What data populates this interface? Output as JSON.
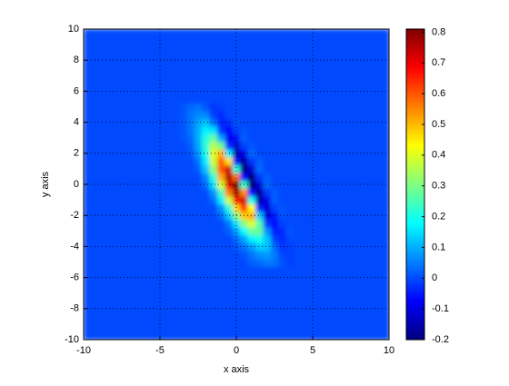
{
  "chart_data": {
    "type": "heatmap",
    "xlabel": "x axis",
    "ylabel": "y axis",
    "colormap": "jet",
    "grid": true,
    "xlim": [
      -10,
      10
    ],
    "ylim": [
      -10,
      10
    ],
    "xticks": [
      -10,
      -5,
      0,
      5,
      10
    ],
    "yticks": [
      -10,
      -8,
      -6,
      -4,
      -2,
      0,
      2,
      4,
      6,
      8,
      10
    ],
    "clim": [
      -0.2,
      0.81
    ],
    "cticks": [
      -0.2,
      -0.1,
      0,
      0.1,
      0.2,
      0.3,
      0.4,
      0.5,
      0.6,
      0.7,
      0.8
    ],
    "x_edges": [
      -10,
      -3.75,
      -3.25,
      -2.75,
      -2.25,
      -1.75,
      -1.25,
      -0.75,
      -0.25,
      0.25,
      0.75,
      1.25,
      1.75,
      2.25,
      2.75,
      3.25,
      3.75,
      10
    ],
    "y_edges": [
      -10,
      -5.25,
      -4.75,
      -4.25,
      -3.75,
      -3.25,
      -2.75,
      -2.25,
      -1.75,
      -1.25,
      -0.75,
      -0.25,
      0.25,
      0.75,
      1.25,
      1.75,
      2.25,
      2.75,
      3.25,
      3.75,
      4.25,
      4.75,
      5.25,
      10
    ],
    "z": [
      [
        0,
        0,
        0,
        0,
        0,
        0,
        0,
        0,
        0,
        0,
        0,
        0,
        0,
        0,
        0,
        0,
        0
      ],
      [
        0,
        0,
        0,
        0,
        0,
        0,
        0,
        0,
        0,
        0,
        0.02,
        0.03,
        0.05,
        0.04,
        0.01,
        -0.01,
        0
      ],
      [
        0,
        0,
        0,
        0,
        0,
        0,
        0,
        0,
        0,
        0.01,
        0.04,
        0.07,
        0.08,
        0.05,
        0,
        -0.01,
        0
      ],
      [
        0,
        0,
        0,
        0,
        0,
        0,
        0,
        0,
        0.01,
        0.04,
        0.08,
        0.13,
        0.12,
        0.03,
        -0.02,
        -0.01,
        0
      ],
      [
        0,
        0,
        0,
        0,
        0,
        0,
        0,
        0,
        0.03,
        0.09,
        0.17,
        0.2,
        0.12,
        -0.01,
        -0.03,
        0,
        0
      ],
      [
        0,
        0,
        0,
        0,
        0,
        0,
        0,
        0.02,
        0.08,
        0.18,
        0.28,
        0.28,
        0.07,
        -0.05,
        -0.03,
        0.01,
        0
      ],
      [
        0,
        0,
        0,
        0,
        0,
        0,
        0,
        0.05,
        0.16,
        0.31,
        0.4,
        0.26,
        -0.02,
        -0.07,
        -0.01,
        0,
        0
      ],
      [
        0,
        0,
        0,
        0,
        0,
        0,
        0.03,
        0.13,
        0.3,
        0.48,
        0.51,
        0.13,
        -0.1,
        -0.05,
        0.01,
        0,
        0
      ],
      [
        0,
        0,
        0,
        0,
        0,
        0,
        0.07,
        0.22,
        0.47,
        0.63,
        0.43,
        -0.04,
        -0.12,
        -0.01,
        0.01,
        0,
        0
      ],
      [
        0,
        0,
        0,
        0,
        0,
        0.03,
        0.16,
        0.38,
        0.66,
        0.73,
        0.19,
        -0.16,
        -0.09,
        0.02,
        0,
        0,
        0
      ],
      [
        0,
        0,
        0,
        0,
        0,
        0.07,
        0.25,
        0.56,
        0.78,
        0.55,
        -0.06,
        -0.18,
        -0.02,
        0.02,
        0,
        0,
        0
      ],
      [
        0,
        0,
        0,
        0,
        0.03,
        0.15,
        0.39,
        0.71,
        0.82,
        0.23,
        -0.2,
        -0.11,
        0.03,
        0,
        0,
        0,
        0
      ],
      [
        0,
        0,
        0,
        0,
        0.06,
        0.22,
        0.52,
        0.76,
        0.57,
        -0.06,
        -0.2,
        -0.02,
        0.02,
        0,
        0,
        0,
        0
      ],
      [
        0,
        0,
        0,
        0.02,
        0.12,
        0.32,
        0.6,
        0.73,
        0.21,
        -0.19,
        -0.12,
        0.03,
        0,
        0,
        0,
        0,
        0
      ],
      [
        0,
        0,
        0,
        0.04,
        0.16,
        0.38,
        0.59,
        0.46,
        -0.05,
        -0.18,
        -0.02,
        0.02,
        0,
        0,
        0,
        0,
        0
      ],
      [
        0,
        0,
        0.01,
        0.07,
        0.2,
        0.4,
        0.51,
        0.16,
        -0.15,
        -0.09,
        0.03,
        0,
        0,
        0,
        0,
        0,
        0
      ],
      [
        0,
        0,
        0.02,
        0.09,
        0.22,
        0.36,
        0.29,
        -0.03,
        -0.12,
        -0.01,
        0.01,
        0,
        0,
        0,
        0,
        0,
        0
      ],
      [
        0,
        0.01,
        0.03,
        0.1,
        0.21,
        0.28,
        0.09,
        -0.09,
        -0.06,
        0.02,
        0,
        0,
        0,
        0,
        0,
        0,
        0
      ],
      [
        0,
        0.01,
        0.04,
        0.1,
        0.17,
        0.15,
        -0.02,
        -0.07,
        -0.01,
        0.01,
        0,
        0,
        0,
        0,
        0,
        0,
        0
      ],
      [
        0,
        0.01,
        0.04,
        0.09,
        0.12,
        0.04,
        -0.04,
        -0.03,
        0.01,
        0,
        0,
        0,
        0,
        0,
        0,
        0,
        0
      ],
      [
        0,
        0.01,
        0.04,
        0.06,
        0.06,
        -0.01,
        -0.03,
        0,
        0,
        0,
        0,
        0,
        0,
        0,
        0,
        0,
        0
      ],
      [
        0,
        0.01,
        0.03,
        0.04,
        0.01,
        -0.02,
        -0.01,
        0,
        0,
        0,
        0,
        0,
        0,
        0,
        0,
        0,
        0
      ],
      [
        0,
        0,
        0,
        0,
        0,
        0,
        0,
        0,
        0,
        0,
        0,
        0,
        0,
        0,
        0,
        0,
        0
      ]
    ]
  }
}
